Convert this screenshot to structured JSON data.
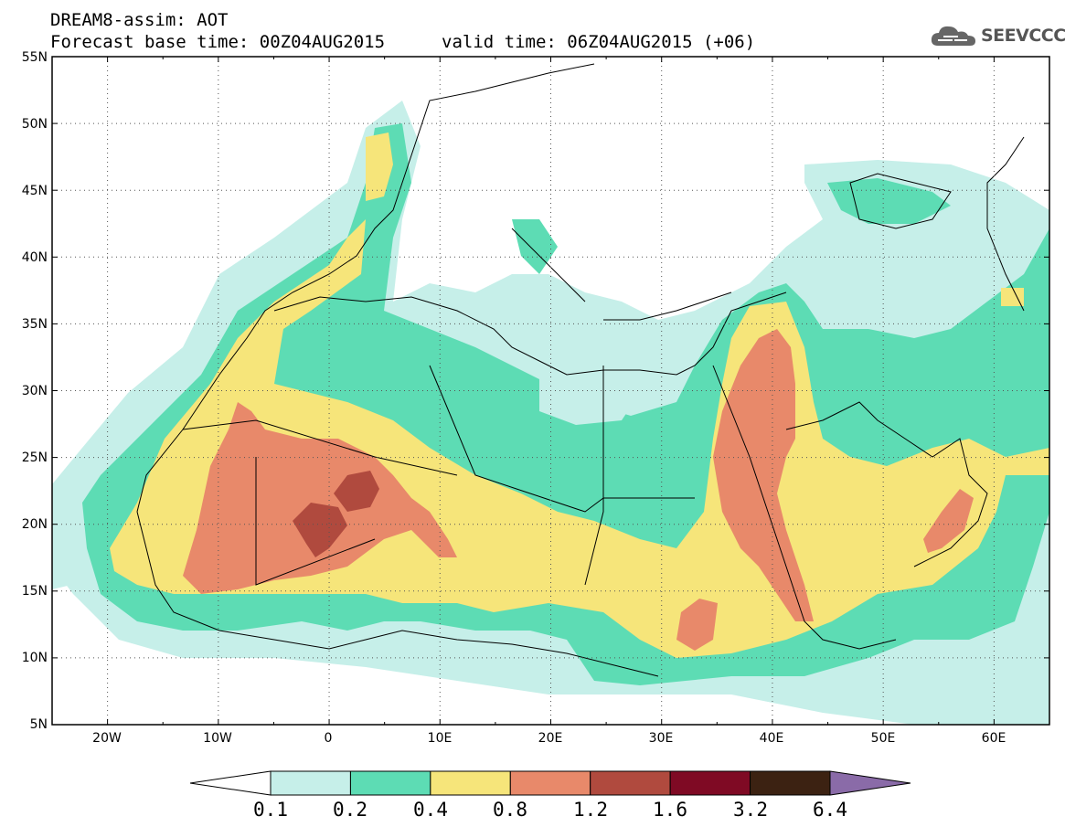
{
  "header": {
    "title_line1": "DREAM8-assim: AOT",
    "title_line2": "Forecast base time: 00Z04AUG2015",
    "valid_time": "valid time: 06Z04AUG2015 (+06)",
    "logo_text": "SEEVCCC"
  },
  "map": {
    "lat_labels": [
      "55N",
      "50N",
      "45N",
      "40N",
      "35N",
      "30N",
      "25N",
      "20N",
      "15N",
      "10N",
      "5N"
    ],
    "lon_labels": [
      "20W",
      "10W",
      "0",
      "10E",
      "20E",
      "30E",
      "40E",
      "50E",
      "60E"
    ],
    "lon_range": [
      -25,
      65
    ],
    "lat_range": [
      5,
      55
    ],
    "grid": true
  },
  "colorbar": {
    "levels": [
      "0.1",
      "0.2",
      "0.4",
      "0.8",
      "1.2",
      "1.6",
      "3.2",
      "6.4"
    ],
    "colors": [
      "#c6efe9",
      "#5ddcb4",
      "#f6e57a",
      "#e8896a",
      "#b04a3e",
      "#7f0a24",
      "#3c2212",
      "#8a6ba8"
    ]
  }
}
